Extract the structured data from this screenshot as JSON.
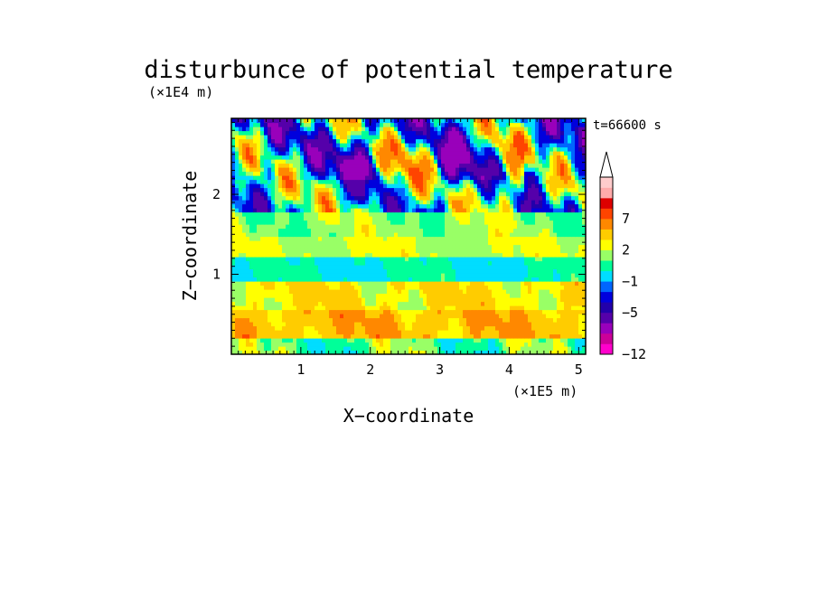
{
  "chart_data": {
    "type": "heatmap",
    "title": "disturbunce of potential temperature",
    "time_label": "t=66600 s",
    "xlabel": "X−coordinate",
    "ylabel": "Z−coordinate",
    "x_unit": "(×1E5 m)",
    "y_unit": "(×1E4 m)",
    "xlim": [
      0,
      5.1
    ],
    "ylim": [
      0,
      2.95
    ],
    "x_ticks": [
      "1",
      "2",
      "3",
      "4",
      "5"
    ],
    "y_ticks": [
      "1",
      "2"
    ],
    "colorbar": {
      "levels": [
        -12,
        -11,
        -9,
        -7,
        -5,
        -4,
        -2,
        -1,
        0,
        1,
        2,
        3,
        5,
        7,
        8,
        9,
        10
      ],
      "colors": [
        "#ff00cc",
        "#cc0099",
        "#9900bb",
        "#5500aa",
        "#2200aa",
        "#0000dd",
        "#0066ff",
        "#00ddff",
        "#00ff99",
        "#99ff66",
        "#ffff00",
        "#ffcc00",
        "#ff8800",
        "#ff4400",
        "#dd0000",
        "#ffaaaa",
        "#ffcccc"
      ],
      "labels": [
        "7",
        "2",
        "−1",
        "−5",
        "−12"
      ],
      "extend": "max"
    },
    "field_bands": [
      {
        "z_range": [
          0.0,
          0.2
        ],
        "range": [
          -1,
          3
        ]
      },
      {
        "z_range": [
          0.2,
          0.55
        ],
        "range": [
          2,
          7
        ]
      },
      {
        "z_range": [
          0.55,
          0.9
        ],
        "range": [
          1,
          5
        ]
      },
      {
        "z_range": [
          0.9,
          1.2
        ],
        "range": [
          -1,
          1
        ]
      },
      {
        "z_range": [
          1.2,
          1.5
        ],
        "range": [
          1,
          3
        ]
      },
      {
        "z_range": [
          1.5,
          1.8
        ],
        "range": [
          0,
          3
        ]
      },
      {
        "z_range": [
          1.8,
          2.2
        ],
        "range": [
          -7,
          7
        ]
      },
      {
        "z_range": [
          2.2,
          2.95
        ],
        "range": [
          -9,
          7
        ]
      }
    ]
  }
}
